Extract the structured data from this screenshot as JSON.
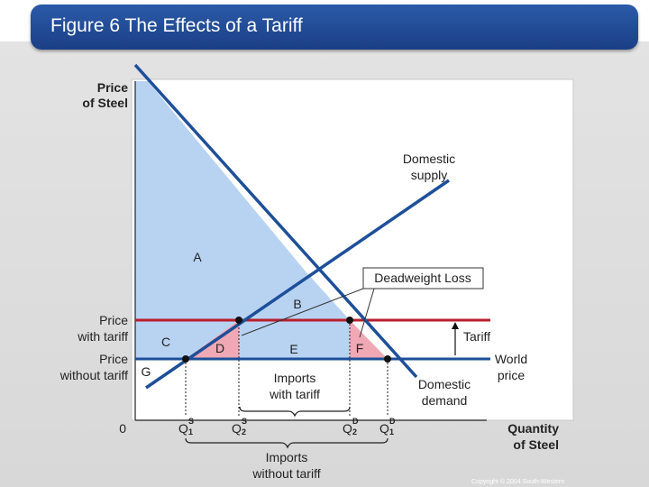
{
  "title": "Figure 6 The Effects of a Tariff",
  "y_axis_label": [
    "Price",
    "of Steel"
  ],
  "x_axis_label": [
    "Quantity",
    "of Steel"
  ],
  "origin_label": "0",
  "supply_label": [
    "Domestic",
    "supply"
  ],
  "demand_label": [
    "Domestic",
    "demand"
  ],
  "price_with_tariff": [
    "Price",
    "with tariff"
  ],
  "price_without_tariff": [
    "Price",
    "without tariff"
  ],
  "world_price": [
    "World",
    "price"
  ],
  "tariff_label": "Tariff",
  "deadweight_loss": "Deadweight Loss",
  "areas": {
    "A": "A",
    "B": "B",
    "C": "C",
    "D": "D",
    "E": "E",
    "F": "F",
    "G": "G"
  },
  "imports_with_tariff": [
    "Imports",
    "with tariff"
  ],
  "imports_without_tariff": [
    "Imports",
    "without tariff"
  ],
  "quantities": {
    "q1s": {
      "main": "Q",
      "sup": "S",
      "sub": "1"
    },
    "q2s": {
      "main": "Q",
      "sup": "S",
      "sub": "2"
    },
    "q2d": {
      "main": "Q",
      "sup": "D",
      "sub": "2"
    },
    "q1d": {
      "main": "Q",
      "sup": "D",
      "sub": "1"
    }
  },
  "copyright": "Copyright © 2004 South-Western",
  "colors": {
    "title_bar": "#1f4a94",
    "surplus_fill": "#b8d3f2",
    "deadweight_fill": "#f0a8b4",
    "curve": "#1d4f9a",
    "tariff_price_line": "#b81e2c"
  }
}
